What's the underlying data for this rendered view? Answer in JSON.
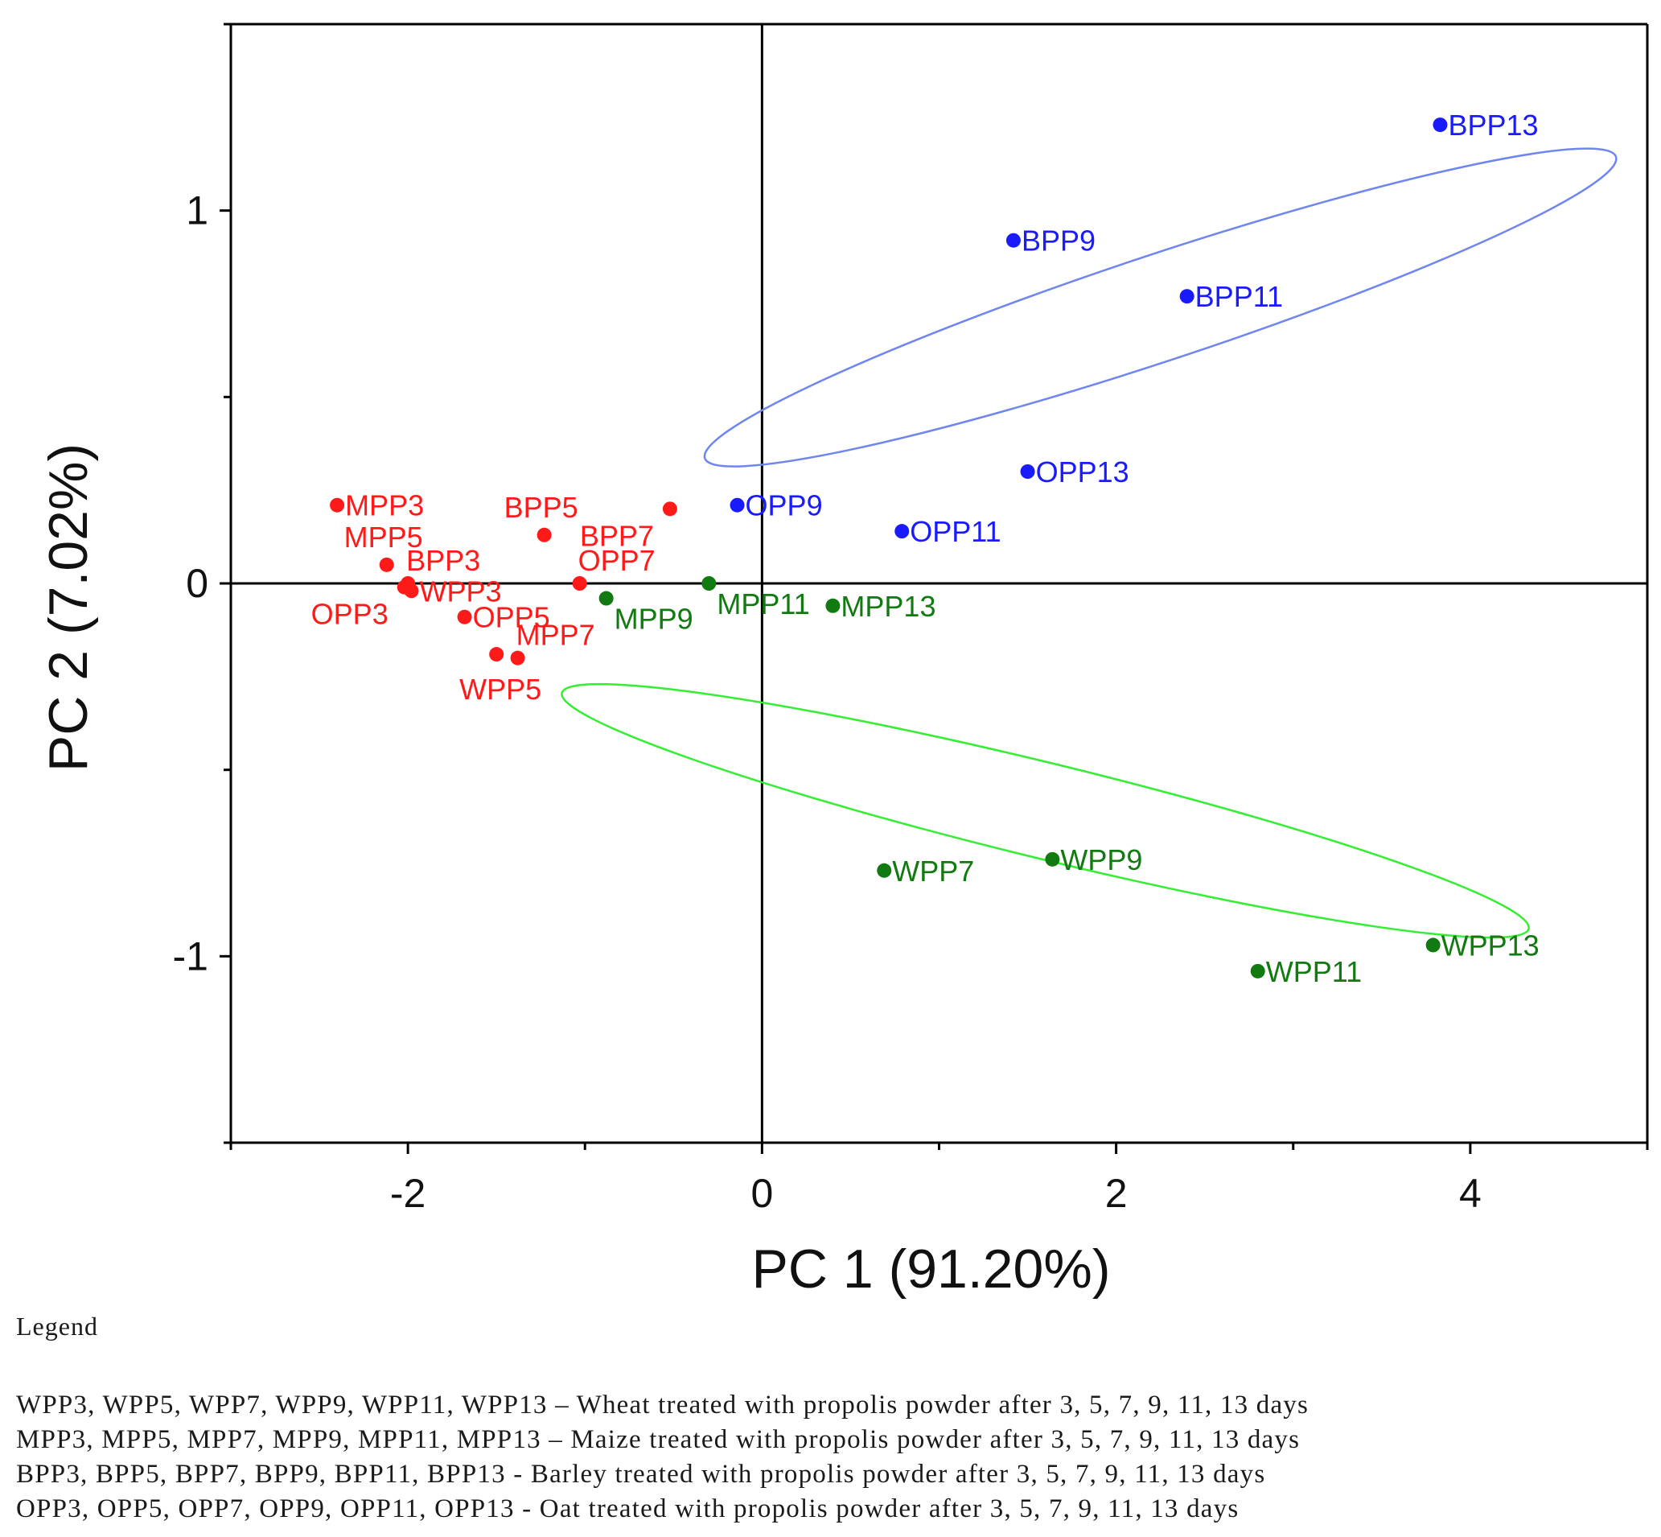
{
  "chart_data": {
    "type": "scatter",
    "xlabel": "PC 1 (91.20%)",
    "ylabel": "PC 2 (7.02%)",
    "xlim": [
      -3,
      5
    ],
    "ylim": [
      -1.5,
      1.5
    ],
    "xticks": [
      -2,
      0,
      2,
      4
    ],
    "yticks": [
      -1,
      0,
      1
    ],
    "x_minor_step": 1,
    "y_minor_step": 0.5,
    "reference_lines": {
      "x": 0,
      "y": 0
    },
    "colors": {
      "red": "#ff1a1a",
      "blue": "#1a1aff",
      "green": "#117a11",
      "ellipse_blue": "#6f86f0",
      "ellipse_green": "#33ee33",
      "axis": "#000000"
    },
    "series": [
      {
        "name": "red-group",
        "color": "#ff1a1a",
        "points": [
          {
            "label": "MPP3",
            "x": -2.4,
            "y": 0.21,
            "label_pos": "right"
          },
          {
            "label": "MPP5",
            "x": -2.12,
            "y": 0.05,
            "label_pos": "above"
          },
          {
            "label": "BPP3",
            "x": -2.0,
            "y": 0.0,
            "label_pos": "above-right"
          },
          {
            "label": "WPP3",
            "x": -1.98,
            "y": -0.02,
            "label_pos": "right"
          },
          {
            "label": "OPP3",
            "x": -2.02,
            "y": -0.01,
            "label_pos": "below-left"
          },
          {
            "label": "OPP5",
            "x": -1.68,
            "y": -0.09,
            "label_pos": "right"
          },
          {
            "label": "MPP7",
            "x": -1.38,
            "y": -0.2,
            "label_pos": "above-right"
          },
          {
            "label": "WPP5",
            "x": -1.5,
            "y": -0.19,
            "label_pos": "below"
          },
          {
            "label": "BPP5",
            "x": -1.23,
            "y": 0.13,
            "label_pos": "above"
          },
          {
            "label": "BPP7",
            "x": -0.52,
            "y": 0.2,
            "label_pos": "below-left"
          },
          {
            "label": "OPP7",
            "x": -1.03,
            "y": 0.0,
            "label_pos": "above-right"
          }
        ]
      },
      {
        "name": "blue-group",
        "color": "#1a1aff",
        "points": [
          {
            "label": "BPP13",
            "x": 3.83,
            "y": 1.23,
            "label_pos": "right"
          },
          {
            "label": "BPP9",
            "x": 1.42,
            "y": 0.92,
            "label_pos": "right"
          },
          {
            "label": "BPP11",
            "x": 2.4,
            "y": 0.77,
            "label_pos": "right"
          },
          {
            "label": "OPP13",
            "x": 1.5,
            "y": 0.3,
            "label_pos": "right"
          },
          {
            "label": "OPP9",
            "x": -0.14,
            "y": 0.21,
            "label_pos": "right"
          },
          {
            "label": "OPP11",
            "x": 0.79,
            "y": 0.14,
            "label_pos": "right"
          }
        ]
      },
      {
        "name": "green-group",
        "color": "#117a11",
        "points": [
          {
            "label": "MPP9",
            "x": -0.88,
            "y": -0.04,
            "label_pos": "below-right"
          },
          {
            "label": "MPP11",
            "x": -0.3,
            "y": 0.0,
            "label_pos": "below-right"
          },
          {
            "label": "MPP13",
            "x": 0.4,
            "y": -0.06,
            "label_pos": "right"
          },
          {
            "label": "WPP7",
            "x": 0.69,
            "y": -0.77,
            "label_pos": "right"
          },
          {
            "label": "WPP9",
            "x": 1.64,
            "y": -0.74,
            "label_pos": "right"
          },
          {
            "label": "WPP11",
            "x": 2.8,
            "y": -1.04,
            "label_pos": "right"
          },
          {
            "label": "WPP13",
            "x": 3.79,
            "y": -0.97,
            "label_pos": "right"
          }
        ]
      }
    ],
    "ellipses": [
      {
        "name": "blue-ellipse",
        "color": "#6f86f0",
        "cx": 2.25,
        "cy": 0.74,
        "rx": 2.71,
        "ry": 0.3,
        "angle_deg": 18.3
      },
      {
        "name": "green-ellipse",
        "color": "#33ee33",
        "cx": 1.6,
        "cy": -0.61,
        "rx": 2.81,
        "ry": 0.27,
        "angle_deg": -13.7
      }
    ]
  },
  "legend": {
    "title": "Legend",
    "lines": [
      "WPP3, WPP5, WPP7, WPP9, WPP11, WPP13 – Wheat treated with propolis powder after 3, 5, 7, 9, 11, 13 days",
      "MPP3, MPP5, MPP7, MPP9, MPP11, MPP13 – Maize treated with propolis powder after 3, 5, 7, 9, 11, 13 days",
      "BPP3, BPP5, BPP7, BPP9, BPP11, BPP13 - Barley treated with propolis powder after 3, 5, 7, 9, 11, 13 days",
      "OPP3, OPP5, OPP7, OPP9, OPP11, OPP13 - Oat treated with propolis powder after 3, 5, 7, 9, 11, 13 days"
    ]
  }
}
